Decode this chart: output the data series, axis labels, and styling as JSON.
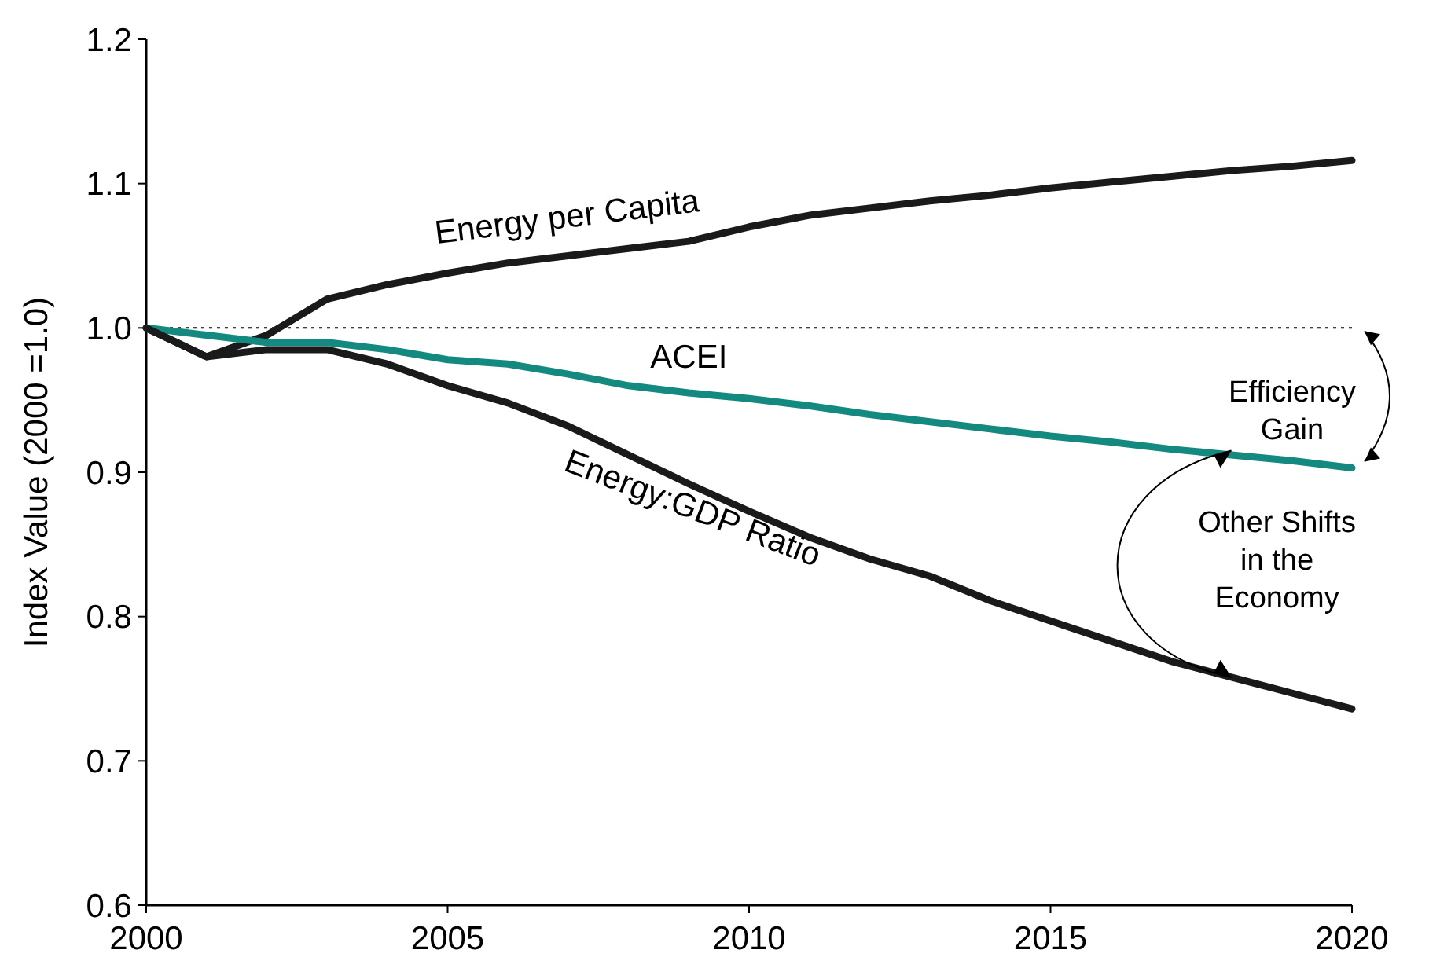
{
  "chart_data": {
    "type": "line",
    "ylabel": "Index Value (2000 =1.0)",
    "x": [
      2000,
      2001,
      2002,
      2003,
      2004,
      2005,
      2006,
      2007,
      2008,
      2009,
      2010,
      2011,
      2012,
      2013,
      2014,
      2015,
      2016,
      2017,
      2018,
      2019,
      2020
    ],
    "series": [
      {
        "name": "Energy per Capita",
        "color": "#1a1a1a",
        "values": [
          1.0,
          0.98,
          0.995,
          1.02,
          1.03,
          1.038,
          1.045,
          1.05,
          1.055,
          1.06,
          1.07,
          1.078,
          1.083,
          1.088,
          1.092,
          1.097,
          1.101,
          1.105,
          1.109,
          1.112,
          1.116
        ]
      },
      {
        "name": "ACEI",
        "color": "#13897f",
        "values": [
          1.0,
          0.995,
          0.99,
          0.99,
          0.985,
          0.978,
          0.975,
          0.968,
          0.96,
          0.955,
          0.951,
          0.946,
          0.94,
          0.935,
          0.93,
          0.925,
          0.921,
          0.916,
          0.912,
          0.908,
          0.903
        ]
      },
      {
        "name": "Energy:GDP Ratio",
        "color": "#1a1a1a",
        "values": [
          1.0,
          0.98,
          0.985,
          0.985,
          0.975,
          0.96,
          0.948,
          0.932,
          0.912,
          0.892,
          0.873,
          0.855,
          0.84,
          0.828,
          0.811,
          0.797,
          0.783,
          0.769,
          0.758,
          0.747,
          0.736
        ]
      }
    ],
    "xlim": [
      2000,
      2020
    ],
    "xticks": [
      2000,
      2005,
      2010,
      2015,
      2020
    ],
    "ylim": [
      0.6,
      1.2
    ],
    "yticks": [
      {
        "value": 0.6,
        "label": "0.6"
      },
      {
        "value": 0.7,
        "label": "0.7"
      },
      {
        "value": 0.8,
        "label": "0.8"
      },
      {
        "value": 0.9,
        "label": "0.9"
      },
      {
        "value": 1.0,
        "label": "1.0"
      },
      {
        "value": 1.1,
        "label": "1.1"
      },
      {
        "value": 1.2,
        "label": "1.2"
      }
    ],
    "ref_lines": [
      {
        "axis": "y",
        "value": 1.0,
        "color": "#000000",
        "line_style": "dotted"
      }
    ],
    "annotations": [
      {
        "text": "Efficiency Gain",
        "x": 2020,
        "y": 0.903
      },
      {
        "text": "Other Shifts in the Economy",
        "x": 2018,
        "y": 0.912
      }
    ],
    "marker": "none",
    "line_style": "solid",
    "grid": false,
    "legend": false
  }
}
